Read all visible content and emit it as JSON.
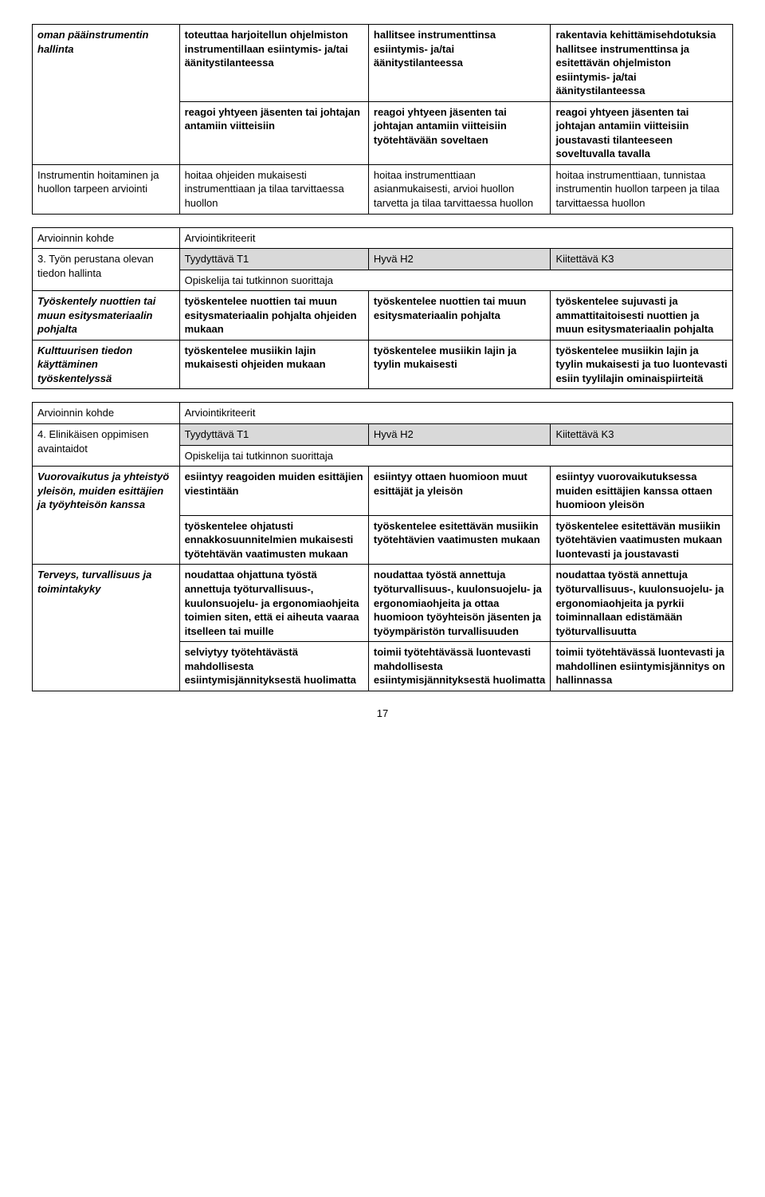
{
  "table1": {
    "r1": {
      "c1": "oman pääinstrumentin hallinta",
      "c2": "toteuttaa harjoitellun ohjelmiston instrumentillaan esiintymis- ja/tai äänitystilanteessa",
      "c3": "hallitsee instrumenttinsa esiintymis- ja/tai äänitystilanteessa",
      "c4": "rakentavia kehittämisehdotuksia",
      "c4b": "hallitsee instrumenttinsa ja esitettävän ohjelmiston esiintymis- ja/tai äänitystilanteessa"
    },
    "r2": {
      "c2": "reagoi yhtyeen jäsenten tai johtajan antamiin viitteisiin",
      "c3": "reagoi yhtyeen jäsenten tai johtajan antamiin viitteisiin työtehtävään soveltaen",
      "c4": "reagoi yhtyeen jäsenten tai johtajan antamiin viitteisiin joustavasti tilanteeseen soveltuvalla tavalla"
    },
    "r3": {
      "c1": "Instrumentin hoitaminen ja huollon tarpeen arviointi",
      "c2": "hoitaa ohjeiden mukaisesti instrumenttiaan ja tilaa tarvittaessa huollon",
      "c3": "hoitaa instrumenttiaan asianmukaisesti, arvioi huollon tarvetta ja tilaa tarvittaessa huollon",
      "c4": "hoitaa instrumenttiaan, tunnistaa instrumentin huollon tarpeen ja tilaa tarvittaessa huollon"
    }
  },
  "table2": {
    "h1": "Arvioinnin kohde",
    "h2": "Arviointikriteerit",
    "sub1": "3. Työn perustana olevan tiedon hallinta",
    "t1": "Tyydyttävä T1",
    "t2": "Hyvä H2",
    "t3": "Kiitettävä K3",
    "sub2": "Opiskelija tai tutkinnon suorittaja",
    "r1": {
      "c1": "Työskentely nuottien tai muun esitysmateriaalin pohjalta",
      "c2": "työskentelee nuottien tai muun esitysmateriaalin pohjalta ohjeiden mukaan",
      "c3": "työskentelee nuottien tai muun esitysmateriaalin pohjalta",
      "c4": "työskentelee sujuvasti ja ammattitaitoisesti nuottien ja muun esitysmateriaalin pohjalta"
    },
    "r2": {
      "c1": "Kulttuurisen tiedon käyttäminen työskentelyssä",
      "c2": "työskentelee musiikin lajin mukaisesti ohjeiden mukaan",
      "c3": "työskentelee musiikin lajin ja tyylin mukaisesti",
      "c4": "työskentelee musiikin lajin ja tyylin mukaisesti ja tuo luontevasti esiin tyylilajin ominaispiirteitä"
    }
  },
  "table3": {
    "h1": "Arvioinnin kohde",
    "h2": "Arviointikriteerit",
    "sub1": "4. Elinikäisen oppimisen avaintaidot",
    "t1": "Tyydyttävä T1",
    "t2": "Hyvä H2",
    "t3": "Kiitettävä K3",
    "sub2": "Opiskelija tai tutkinnon suorittaja",
    "r1": {
      "c1": "Vuorovaikutus ja yhteistyö yleisön, muiden esittäjien ja työyhteisön kanssa",
      "c2": "esiintyy reagoiden muiden esittäjien viestintään",
      "c3": "esiintyy ottaen huomioon muut esittäjät ja yleisön",
      "c4": "esiintyy vuorovaikutuksessa muiden esittäjien kanssa ottaen huomioon yleisön"
    },
    "r2": {
      "c2": "työskentelee ohjatusti ennakkosuunnitelmien mukaisesti työtehtävän vaatimusten mukaan",
      "c3": "työskentelee esitettävän musiikin työtehtävien vaatimusten mukaan",
      "c4": "työskentelee esitettävän musiikin työtehtävien vaatimusten mukaan luontevasti ja joustavasti"
    },
    "r3": {
      "c1": "Terveys, turvallisuus ja toimintakyky",
      "c2": "noudattaa ohjattuna työstä annettuja työturvallisuus-, kuulonsuojelu- ja ergonomiaohjeita toimien siten, että ei aiheuta vaaraa itselleen tai muille",
      "c3": "noudattaa työstä annettuja työturvallisuus-, kuulonsuojelu- ja ergonomiaohjeita ja ottaa huomioon työyhteisön jäsenten ja työympäristön turvallisuuden",
      "c4": "noudattaa työstä annettuja työturvallisuus-, kuulonsuojelu- ja ergonomiaohjeita ja pyrkii toiminnallaan edistämään työturvallisuutta"
    },
    "r4": {
      "c2": "selviytyy työtehtävästä mahdollisesta esiintymisjännityksestä huolimatta",
      "c3": "toimii työtehtävässä luontevasti mahdollisesta esiintymisjännityksestä huolimatta",
      "c4": "toimii työtehtävässä luontevasti ja mahdollinen esiintymisjännitys on hallinnassa"
    }
  },
  "pageNumber": "17"
}
